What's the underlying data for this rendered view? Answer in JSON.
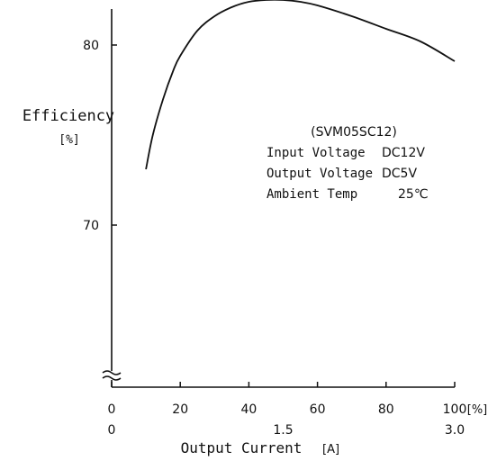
{
  "chart_data": {
    "type": "line",
    "ylabel": "Efficiency",
    "ylabel_unit": "[%]",
    "xlabel": "Output Current",
    "xlabel_unit": "[A]",
    "x_unit_label": "[%]",
    "xlim": [
      0,
      100
    ],
    "ylim": [
      60,
      83
    ],
    "y_axis_break": true,
    "x_ticks": [
      0,
      20,
      40,
      60,
      80,
      100
    ],
    "y_ticks": [
      80,
      70
    ],
    "current_ticks": [
      {
        "x": 0,
        "label": "0"
      },
      {
        "x": 50,
        "label": "1.5"
      },
      {
        "x": 100,
        "label": "3.0"
      }
    ],
    "annotation": {
      "model": "(SVM05SC12)",
      "lines": [
        {
          "label": "Input Voltage",
          "value": "DC12V"
        },
        {
          "label": "Output Voltage",
          "value": "DC5V"
        },
        {
          "label": "Ambient Temp",
          "value": "25℃"
        }
      ]
    },
    "series": [
      {
        "x": [
          10,
          12,
          15,
          18,
          20,
          25,
          30,
          35,
          40,
          45,
          50,
          55,
          60,
          70,
          80,
          90,
          100
        ],
        "values": [
          73.1,
          75.0,
          77.0,
          78.6,
          79.4,
          80.8,
          81.6,
          82.1,
          82.4,
          82.5,
          82.5,
          82.4,
          82.2,
          81.6,
          80.9,
          80.2,
          79.1
        ]
      }
    ],
    "grid": false
  }
}
